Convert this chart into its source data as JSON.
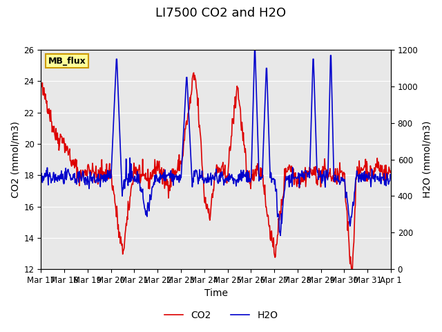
{
  "title": "LI7500 CO2 and H2O",
  "xlabel": "Time",
  "ylabel_left": "CO2 (mmol/m3)",
  "ylabel_right": "H2O (mmol/m3)",
  "ylim_left": [
    12,
    26
  ],
  "ylim_right": [
    0,
    1200
  ],
  "yticks_left": [
    12,
    14,
    16,
    18,
    20,
    22,
    24,
    26
  ],
  "yticks_right": [
    0,
    200,
    400,
    600,
    800,
    1000,
    1200
  ],
  "background_color": "#ffffff",
  "plot_bg_color": "#e8e8e8",
  "grid_color": "#ffffff",
  "co2_color": "#dd0000",
  "h2o_color": "#0000cc",
  "legend_co2": "CO2",
  "legend_h2o": "H2O",
  "watermark_text": "MB_flux",
  "watermark_bg": "#ffff99",
  "watermark_border": "#cc9900",
  "title_fontsize": 13,
  "axis_fontsize": 10,
  "tick_fontsize": 8.5,
  "legend_fontsize": 10,
  "line_width": 1.2,
  "seed": 42,
  "n_days": 15,
  "points_per_day": 48,
  "xtick_labels": [
    "Mar 17",
    "Mar 18",
    "Mar 19",
    "Mar 20",
    "Mar 21",
    "Mar 22",
    "Mar 23",
    "Mar 24",
    "Mar 25",
    "Mar 26",
    "Mar 27",
    "Mar 28",
    "Mar 29",
    "Mar 30",
    "Mar 31",
    "Apr 1"
  ]
}
